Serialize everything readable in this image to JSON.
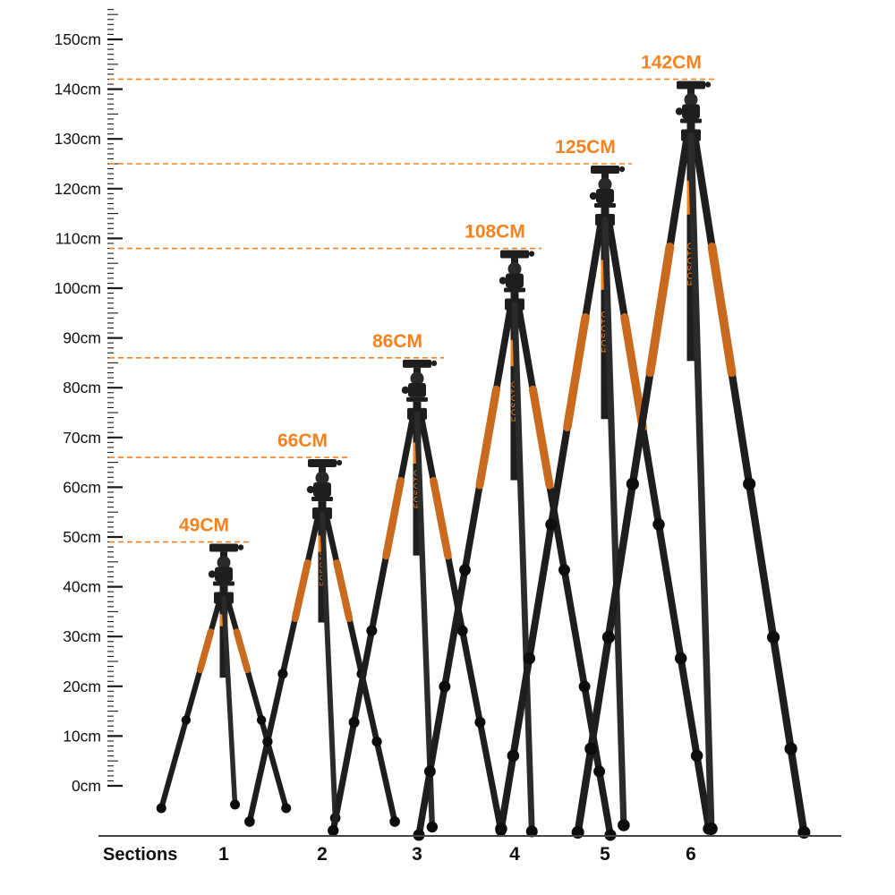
{
  "chart_data": {
    "type": "scatter",
    "x_label": "Sections",
    "categories": [
      "1",
      "2",
      "3",
      "4",
      "5",
      "6"
    ],
    "heights_cm": [
      49,
      66,
      86,
      108,
      125,
      142
    ],
    "height_labels": [
      "49CM",
      "66CM",
      "86CM",
      "108CM",
      "125CM",
      "142CM"
    ],
    "ruler_unit": "cm",
    "ruler_range_cm": [
      0,
      150
    ],
    "ruler_tick_step_cm": 10,
    "ruler_tick_labels": [
      "0cm",
      "10cm",
      "20cm",
      "30cm",
      "40cm",
      "50cm",
      "60cm",
      "70cm",
      "80cm",
      "90cm",
      "100cm",
      "110cm",
      "120cm",
      "130cm",
      "140cm",
      "150cm"
    ],
    "sections_label": "Sections",
    "brand": "FOSOTO",
    "accent_color": "#F5821F",
    "grip_color": "#c96a1f",
    "tripod_color": "#1e1e1e",
    "ruler_color": "#1a1a1a",
    "text_color": "#111111"
  }
}
